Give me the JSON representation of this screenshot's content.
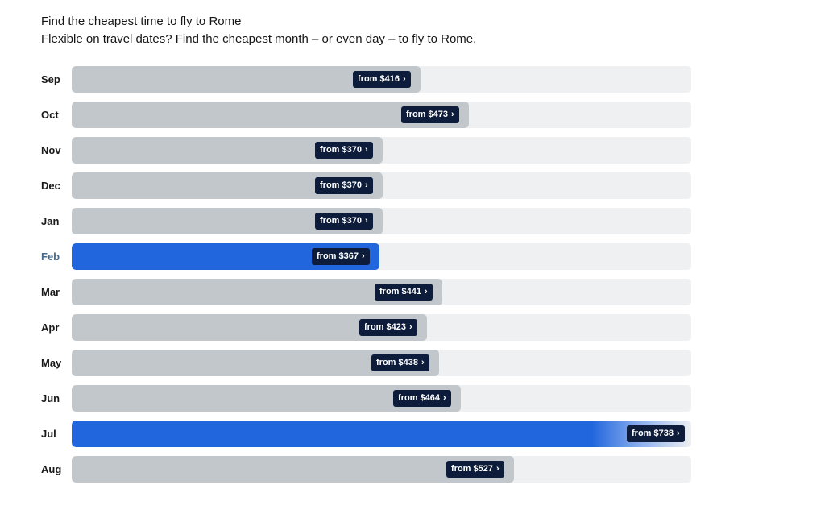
{
  "header": {
    "title": "Find the cheapest time to fly to Rome",
    "subtitle": "Flexible on travel dates? Find the cheapest month – or even day – to fly to Rome."
  },
  "icons": {
    "price_chevron": "chevron-right-icon"
  },
  "colors": {
    "bar_default": "#c2c7cc",
    "bar_highlight": "#2266dd",
    "track": "#eef0f1",
    "price_badge": "#0c1c3a"
  },
  "chart_data": {
    "type": "bar",
    "orientation": "horizontal",
    "title": "Find the cheapest time to fly to Rome",
    "xlim": [
      0,
      738
    ],
    "categories": [
      "Sep",
      "Oct",
      "Nov",
      "Dec",
      "Jan",
      "Feb",
      "Mar",
      "Apr",
      "May",
      "Jun",
      "Jul",
      "Aug"
    ],
    "values": [
      416,
      473,
      370,
      370,
      370,
      367,
      441,
      423,
      438,
      464,
      738,
      527
    ],
    "price_labels": [
      "from $416",
      "from $473",
      "from $370",
      "from $370",
      "from $370",
      "from $367",
      "from $441",
      "from $423",
      "from $438",
      "from $464",
      "from $738",
      "from $527"
    ],
    "highlighted": [
      "Feb",
      "Jul"
    ],
    "grid": false,
    "legend": "none"
  }
}
